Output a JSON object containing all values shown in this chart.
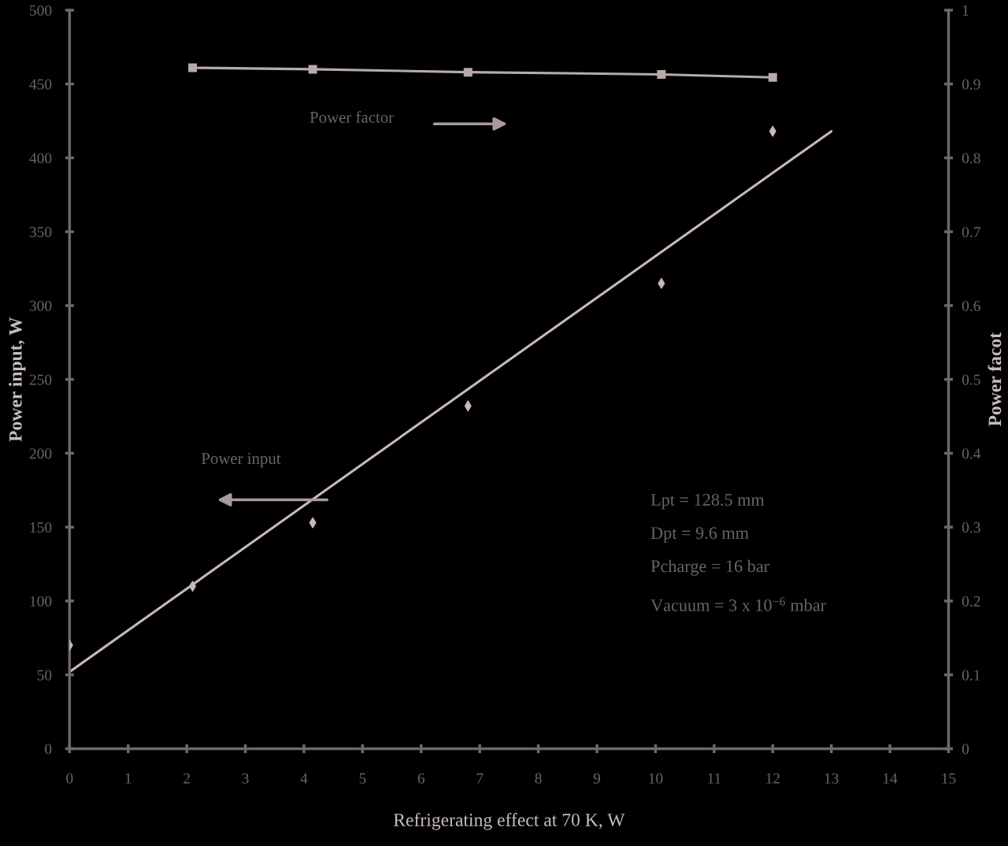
{
  "chart_data": {
    "type": "scatter",
    "xlabel": "Refrigerating effect at 70 K, W",
    "ylabel": "Power input, W",
    "y2label": "Power facot",
    "xlim": [
      0,
      15
    ],
    "xticks": [
      0,
      1,
      2,
      3,
      4,
      5,
      6,
      7,
      8,
      9,
      10,
      11,
      12,
      13,
      14,
      15
    ],
    "ylim": [
      0,
      500
    ],
    "yticks": [
      0,
      50,
      100,
      150,
      200,
      250,
      300,
      350,
      400,
      450,
      500
    ],
    "y2lim": [
      0,
      1
    ],
    "y2ticks": [
      0,
      0.1,
      0.2,
      0.3,
      0.4,
      0.5,
      0.6,
      0.7,
      0.8,
      0.9,
      1
    ],
    "series": [
      {
        "marker": "diamond",
        "color": "#c8b8b6",
        "x": [
          0,
          2.1,
          4.15,
          6.8,
          10.1,
          12
        ],
        "values": [
          70,
          110,
          153,
          232,
          315,
          418
        ]
      },
      {
        "type": "line",
        "marker": "none",
        "line_style": "solid",
        "color": "#c8b8b6",
        "x": [
          0,
          13
        ],
        "values": [
          52,
          418
        ]
      },
      {
        "type": "line",
        "axis": "y2",
        "marker": "square",
        "line_style": "solid",
        "color": "#b8aaa8",
        "x": [
          2.1,
          4.15,
          6.8,
          10.1,
          12
        ],
        "values": [
          0.922,
          0.92,
          0.916,
          0.913,
          0.909
        ]
      }
    ],
    "annotations": [
      "Power factor",
      "Power input",
      "Lpt = 128.5 mm",
      "Dpt = 9.6 mm",
      "Pcharge = 16 bar",
      "Vacuum = 3 x 10$^{−6}$ mbar"
    ]
  }
}
